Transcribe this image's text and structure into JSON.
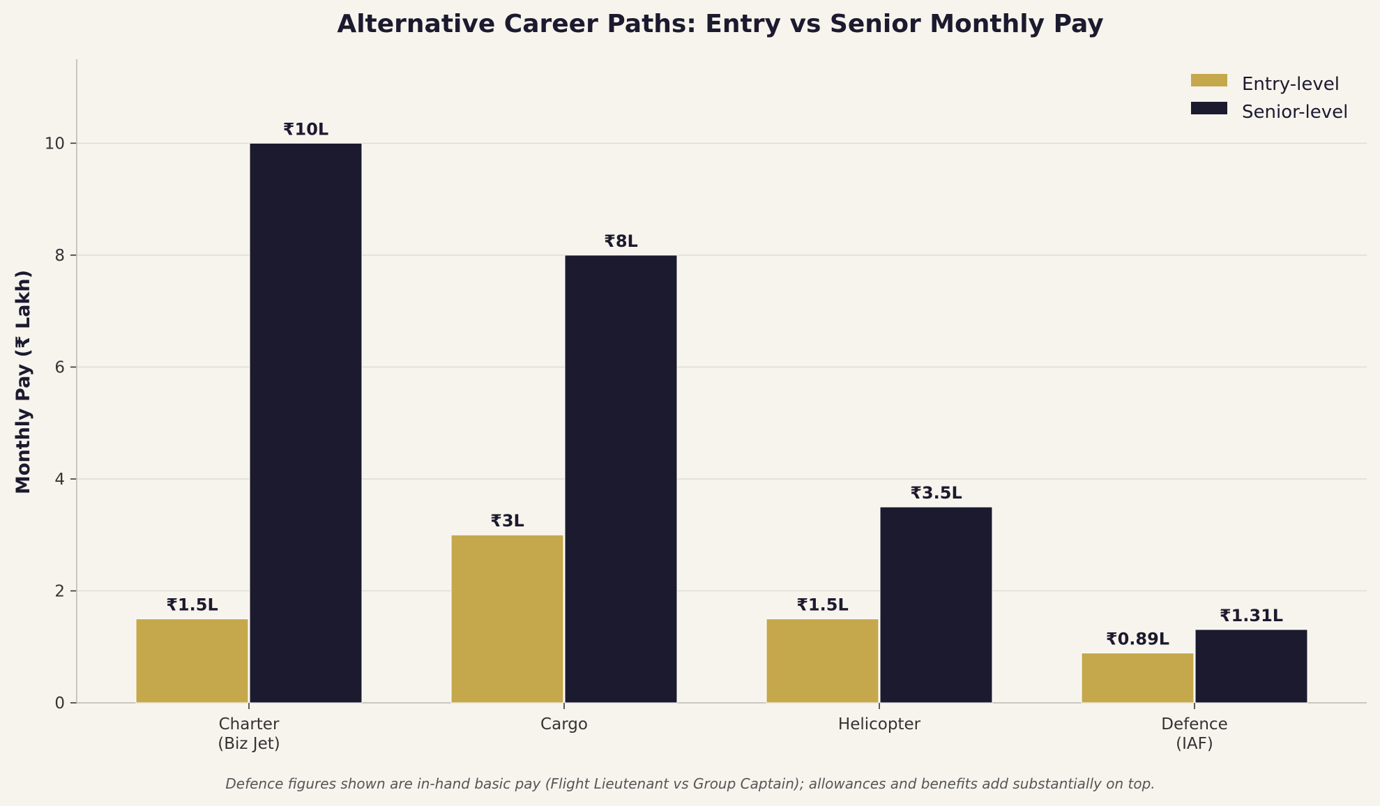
{
  "chart_data": {
    "type": "bar",
    "title": "Alternative Career Paths: Entry vs Senior Monthly Pay",
    "xlabel": "",
    "ylabel": "Monthly Pay (₹ Lakh)",
    "categories": [
      [
        "Charter",
        "(Biz Jet)"
      ],
      [
        "Cargo"
      ],
      [
        "Helicopter"
      ],
      [
        "Defence",
        "(IAF)"
      ]
    ],
    "series": [
      {
        "name": "Entry-level",
        "color": "#c6a84c",
        "values": [
          1.5,
          3,
          1.5,
          0.89
        ],
        "labels": [
          "₹1.5L",
          "₹3L",
          "₹1.5L",
          "₹0.89L"
        ]
      },
      {
        "name": "Senior-level",
        "color": "#1c1a2e",
        "values": [
          10,
          8,
          3.5,
          1.31
        ],
        "labels": [
          "₹10L",
          "₹8L",
          "₹3.5L",
          "₹1.31L"
        ]
      }
    ],
    "ylim": [
      0,
      11.5
    ],
    "yticks": [
      0,
      2,
      4,
      6,
      8,
      10
    ],
    "grid": "horizontal",
    "legend_position": "top-right",
    "footnote": "Defence figures shown are in-hand basic pay (Flight Lieutenant vs Group Captain); allowances and benefits add substantially on top."
  }
}
